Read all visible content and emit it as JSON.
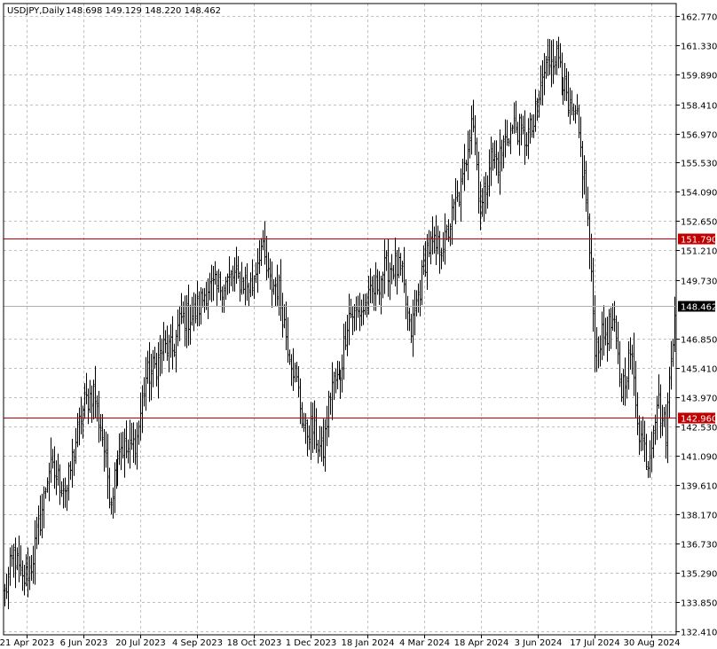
{
  "chart_header": {
    "symbol": "USDJPY,Daily",
    "ohlc": "148.698 149.129 148.220 148.462"
  },
  "colors": {
    "background": "#ffffff",
    "grid": "#c0c0c0",
    "bars": "#000000",
    "level_line": "#c00000",
    "current_price_line": "#b0b0b0",
    "label_level_bg": "#c00000",
    "label_current_bg": "#000000"
  },
  "chart_data": {
    "type": "ohlc-bar",
    "symbol": "USDJPY",
    "timeframe": "Daily",
    "y_ticks": [
      "162.770",
      "161.330",
      "159.890",
      "158.410",
      "156.970",
      "155.530",
      "154.090",
      "152.650",
      "151.210",
      "149.730",
      "146.850",
      "145.410",
      "143.970",
      "142.530",
      "141.090",
      "139.610",
      "138.170",
      "136.730",
      "135.290",
      "133.850",
      "132.410"
    ],
    "ylim": [
      132.41,
      162.77
    ],
    "x_ticks": [
      "21 Apr 2023",
      "6 Jun 2023",
      "20 Jul 2023",
      "4 Sep 2023",
      "18 Oct 2023",
      "1 Dec 2023",
      "18 Jan 2024",
      "4 Mar 2024",
      "18 Apr 2024",
      "3 Jun 2024",
      "17 Jul 2024",
      "30 Aug 2024"
    ],
    "price_levels": [
      {
        "label": "151.790",
        "value": 151.79,
        "kind": "horizontal-line"
      },
      {
        "label": "142.960",
        "value": 142.96,
        "kind": "horizontal-line"
      }
    ],
    "current_price": {
      "label": "148.462",
      "value": 148.462
    },
    "series_close_path": [
      [
        "2023-04-21",
        134.2
      ],
      [
        "2023-04-28",
        136.3
      ],
      [
        "2023-05-05",
        134.8
      ],
      [
        "2023-05-12",
        135.7
      ],
      [
        "2023-05-19",
        137.9
      ],
      [
        "2023-05-26",
        140.5
      ],
      [
        "2023-06-02",
        139.9
      ],
      [
        "2023-06-09",
        139.4
      ],
      [
        "2023-06-16",
        141.8
      ],
      [
        "2023-06-23",
        143.6
      ],
      [
        "2023-06-30",
        144.3
      ],
      [
        "2023-07-07",
        142.1
      ],
      [
        "2023-07-14",
        138.9
      ],
      [
        "2023-07-21",
        141.7
      ],
      [
        "2023-07-28",
        141.2
      ],
      [
        "2023-08-04",
        141.8
      ],
      [
        "2023-08-11",
        144.9
      ],
      [
        "2023-08-18",
        145.4
      ],
      [
        "2023-08-25",
        146.4
      ],
      [
        "2023-09-01",
        146.2
      ],
      [
        "2023-09-08",
        147.8
      ],
      [
        "2023-09-15",
        147.9
      ],
      [
        "2023-09-22",
        148.4
      ],
      [
        "2023-09-29",
        149.4
      ],
      [
        "2023-10-06",
        149.3
      ],
      [
        "2023-10-13",
        149.6
      ],
      [
        "2023-10-20",
        149.9
      ],
      [
        "2023-10-27",
        149.7
      ],
      [
        "2023-11-03",
        149.4
      ],
      [
        "2023-11-10",
        151.5
      ],
      [
        "2023-11-17",
        149.6
      ],
      [
        "2023-11-24",
        149.4
      ],
      [
        "2023-12-01",
        146.8
      ],
      [
        "2023-12-08",
        144.9
      ],
      [
        "2023-12-15",
        142.2
      ],
      [
        "2023-12-22",
        142.4
      ],
      [
        "2023-12-29",
        141.0
      ],
      [
        "2024-01-05",
        144.6
      ],
      [
        "2024-01-12",
        144.9
      ],
      [
        "2024-01-19",
        148.1
      ],
      [
        "2024-01-26",
        148.1
      ],
      [
        "2024-02-02",
        148.4
      ],
      [
        "2024-02-09",
        149.3
      ],
      [
        "2024-02-16",
        150.2
      ],
      [
        "2024-02-23",
        150.5
      ],
      [
        "2024-03-01",
        150.1
      ],
      [
        "2024-03-08",
        147.0
      ],
      [
        "2024-03-15",
        149.1
      ],
      [
        "2024-03-22",
        151.4
      ],
      [
        "2024-03-29",
        151.3
      ],
      [
        "2024-04-05",
        151.6
      ],
      [
        "2024-04-12",
        153.3
      ],
      [
        "2024-04-19",
        154.6
      ],
      [
        "2024-04-26",
        158.3
      ],
      [
        "2024-05-03",
        153.0
      ],
      [
        "2024-05-10",
        155.7
      ],
      [
        "2024-05-17",
        155.6
      ],
      [
        "2024-05-24",
        157.0
      ],
      [
        "2024-05-31",
        157.3
      ],
      [
        "2024-06-07",
        156.7
      ],
      [
        "2024-06-14",
        157.4
      ],
      [
        "2024-06-21",
        159.8
      ],
      [
        "2024-06-28",
        160.9
      ],
      [
        "2024-07-05",
        160.7
      ],
      [
        "2024-07-12",
        157.9
      ],
      [
        "2024-07-19",
        157.4
      ],
      [
        "2024-07-26",
        153.8
      ],
      [
        "2024-08-02",
        146.5
      ],
      [
        "2024-08-09",
        147.0
      ],
      [
        "2024-08-16",
        147.6
      ],
      [
        "2024-08-23",
        144.3
      ],
      [
        "2024-08-30",
        146.2
      ],
      [
        "2024-09-06",
        142.3
      ],
      [
        "2024-09-13",
        140.8
      ],
      [
        "2024-09-20",
        143.9
      ],
      [
        "2024-09-27",
        142.2
      ],
      [
        "2024-10-04",
        148.5
      ]
    ],
    "grid": true
  }
}
